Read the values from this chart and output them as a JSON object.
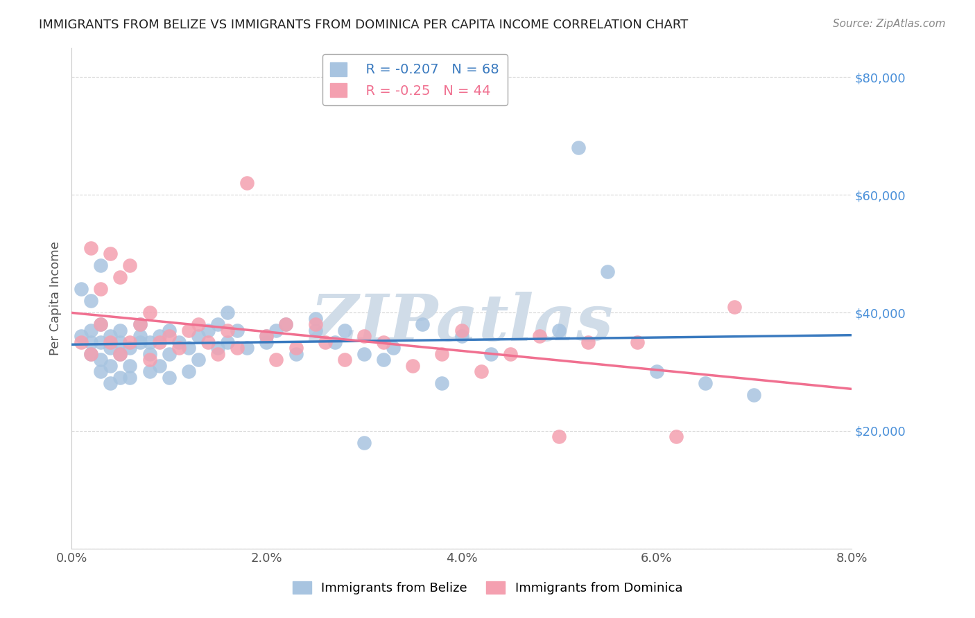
{
  "title": "IMMIGRANTS FROM BELIZE VS IMMIGRANTS FROM DOMINICA PER CAPITA INCOME CORRELATION CHART",
  "source": "Source: ZipAtlas.com",
  "ylabel": "Per Capita Income",
  "xlabel": "",
  "xlim": [
    0.0,
    0.08
  ],
  "ylim": [
    0,
    85000
  ],
  "xtick_labels": [
    "0.0%",
    "2.0%",
    "4.0%",
    "6.0%",
    "8.0%"
  ],
  "xtick_values": [
    0.0,
    0.02,
    0.04,
    0.06,
    0.08
  ],
  "ytick_values": [
    0,
    20000,
    40000,
    60000,
    80000
  ],
  "ytick_labels": [
    "",
    "$20,000",
    "$40,000",
    "$60,000",
    "$80,000"
  ],
  "belize_color": "#a8c4e0",
  "dominica_color": "#f4a0b0",
  "belize_line_color": "#3a7abf",
  "dominica_line_color": "#f07090",
  "belize_R": -0.207,
  "belize_N": 68,
  "dominica_R": -0.25,
  "dominica_N": 44,
  "watermark": "ZIPatlas",
  "watermark_color": "#d0dce8",
  "belize_x": [
    0.001,
    0.001,
    0.002,
    0.002,
    0.002,
    0.002,
    0.003,
    0.003,
    0.003,
    0.003,
    0.003,
    0.004,
    0.004,
    0.004,
    0.004,
    0.005,
    0.005,
    0.005,
    0.005,
    0.006,
    0.006,
    0.006,
    0.007,
    0.007,
    0.007,
    0.008,
    0.008,
    0.008,
    0.009,
    0.009,
    0.01,
    0.01,
    0.01,
    0.011,
    0.012,
    0.012,
    0.013,
    0.013,
    0.014,
    0.015,
    0.015,
    0.016,
    0.016,
    0.017,
    0.018,
    0.02,
    0.02,
    0.021,
    0.022,
    0.023,
    0.025,
    0.025,
    0.027,
    0.028,
    0.03,
    0.03,
    0.032,
    0.033,
    0.036,
    0.038,
    0.04,
    0.043,
    0.05,
    0.052,
    0.055,
    0.06,
    0.065,
    0.07
  ],
  "belize_y": [
    36000,
    44000,
    33000,
    35000,
    37000,
    42000,
    30000,
    32000,
    35000,
    38000,
    48000,
    28000,
    31000,
    34000,
    36000,
    29000,
    33000,
    35000,
    37000,
    29000,
    31000,
    34000,
    35000,
    36000,
    38000,
    30000,
    33000,
    35000,
    31000,
    36000,
    29000,
    33000,
    37000,
    35000,
    30000,
    34000,
    32000,
    36000,
    37000,
    34000,
    38000,
    35000,
    40000,
    37000,
    34000,
    35000,
    36000,
    37000,
    38000,
    33000,
    37000,
    39000,
    35000,
    37000,
    18000,
    33000,
    32000,
    34000,
    38000,
    28000,
    36000,
    33000,
    37000,
    68000,
    47000,
    30000,
    28000,
    26000
  ],
  "dominica_x": [
    0.001,
    0.002,
    0.002,
    0.003,
    0.003,
    0.004,
    0.004,
    0.005,
    0.005,
    0.006,
    0.006,
    0.007,
    0.008,
    0.008,
    0.009,
    0.01,
    0.011,
    0.012,
    0.013,
    0.014,
    0.015,
    0.016,
    0.017,
    0.018,
    0.02,
    0.021,
    0.022,
    0.023,
    0.025,
    0.026,
    0.028,
    0.03,
    0.032,
    0.035,
    0.038,
    0.04,
    0.042,
    0.045,
    0.048,
    0.05,
    0.053,
    0.058,
    0.062,
    0.068
  ],
  "dominica_y": [
    35000,
    33000,
    51000,
    38000,
    44000,
    35000,
    50000,
    33000,
    46000,
    35000,
    48000,
    38000,
    40000,
    32000,
    35000,
    36000,
    34000,
    37000,
    38000,
    35000,
    33000,
    37000,
    34000,
    62000,
    36000,
    32000,
    38000,
    34000,
    38000,
    35000,
    32000,
    36000,
    35000,
    31000,
    33000,
    37000,
    30000,
    33000,
    36000,
    19000,
    35000,
    35000,
    19000,
    41000
  ]
}
